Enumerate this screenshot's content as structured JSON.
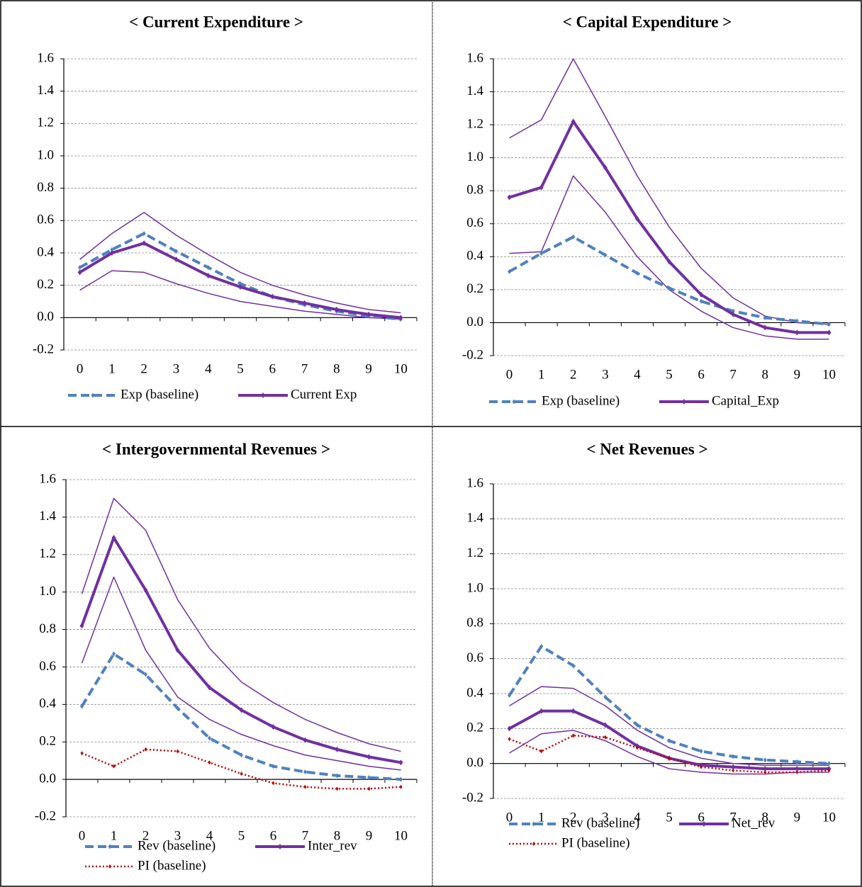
{
  "chart_data": [
    {
      "type": "line",
      "title": "< Current Expenditure >",
      "categories": [
        "0",
        "1",
        "2",
        "3",
        "4",
        "5",
        "6",
        "7",
        "8",
        "9",
        "10"
      ],
      "ylim": [
        -0.2,
        1.6
      ],
      "yticks": [
        {
          "value": -0.2,
          "label": "-0.2"
        },
        {
          "value": 0,
          "label": "0.0"
        },
        {
          "value": 0.2,
          "label": "0.2"
        },
        {
          "value": 0.4,
          "label": "0.4"
        },
        {
          "value": 0.6,
          "label": "0.6"
        },
        {
          "value": 0.8,
          "label": "0.8"
        },
        {
          "value": 1,
          "label": "1.0"
        },
        {
          "value": 1.2,
          "label": "1.2"
        },
        {
          "value": 1.4,
          "label": "1.4"
        },
        {
          "value": 1.6,
          "label": "1.6"
        }
      ],
      "grid": true,
      "series": [
        {
          "color": "#7030a0",
          "style": "thin",
          "values": [
            0.36,
            0.52,
            0.65,
            0.51,
            0.39,
            0.28,
            0.2,
            0.14,
            0.09,
            0.05,
            0.03
          ]
        },
        {
          "color": "#7030a0",
          "style": "thin",
          "values": [
            0.17,
            0.29,
            0.28,
            0.21,
            0.15,
            0.1,
            0.07,
            0.04,
            0.02,
            0.0,
            -0.01
          ]
        },
        {
          "name": "Exp (baseline)",
          "color": "#4f81bd",
          "style": "dashed",
          "values": [
            0.31,
            0.42,
            0.52,
            0.41,
            0.31,
            0.21,
            0.13,
            0.08,
            0.04,
            0.01,
            -0.01
          ]
        },
        {
          "name": "Current  Exp",
          "color": "#7030a0",
          "style": "bold",
          "values": [
            0.28,
            0.4,
            0.46,
            0.36,
            0.26,
            0.19,
            0.13,
            0.09,
            0.05,
            0.02,
            0.0
          ]
        }
      ]
    },
    {
      "type": "line",
      "title": "< Capital Expenditure >",
      "categories": [
        "0",
        "1",
        "2",
        "3",
        "4",
        "5",
        "6",
        "7",
        "8",
        "9",
        "10"
      ],
      "ylim": [
        -0.2,
        1.6
      ],
      "yticks": [
        {
          "value": -0.2,
          "label": "-0.2"
        },
        {
          "value": 0,
          "label": "0.0"
        },
        {
          "value": 0.2,
          "label": "0.2"
        },
        {
          "value": 0.4,
          "label": "0.4"
        },
        {
          "value": 0.6,
          "label": "0.6"
        },
        {
          "value": 0.8,
          "label": "0.8"
        },
        {
          "value": 1,
          "label": "1.0"
        },
        {
          "value": 1.2,
          "label": "1.2"
        },
        {
          "value": 1.4,
          "label": "1.4"
        },
        {
          "value": 1.6,
          "label": "1.6"
        }
      ],
      "grid": true,
      "series": [
        {
          "color": "#7030a0",
          "style": "thin",
          "values": [
            1.12,
            1.23,
            1.6,
            1.25,
            0.89,
            0.58,
            0.33,
            0.15,
            0.04,
            0.0,
            -0.01
          ]
        },
        {
          "color": "#7030a0",
          "style": "thin",
          "values": [
            0.42,
            0.43,
            0.89,
            0.67,
            0.4,
            0.2,
            0.07,
            -0.03,
            -0.08,
            -0.1,
            -0.1
          ]
        },
        {
          "name": "Exp (baseline)",
          "color": "#4f81bd",
          "style": "dashed",
          "values": [
            0.31,
            0.42,
            0.52,
            0.41,
            0.3,
            0.21,
            0.13,
            0.07,
            0.03,
            0.01,
            -0.01
          ]
        },
        {
          "name": "Capital_Exp",
          "color": "#7030a0",
          "style": "bold",
          "values": [
            0.76,
            0.82,
            1.22,
            0.94,
            0.63,
            0.37,
            0.17,
            0.05,
            -0.03,
            -0.06,
            -0.06
          ]
        }
      ]
    },
    {
      "type": "line",
      "title": "< Intergovernmental Revenues >",
      "categories": [
        "0",
        "1",
        "2",
        "3",
        "4",
        "5",
        "6",
        "7",
        "8",
        "9",
        "10"
      ],
      "ylim": [
        -0.2,
        1.6
      ],
      "yticks": [
        {
          "value": -0.2,
          "label": "-0.2"
        },
        {
          "value": 0,
          "label": "0.0"
        },
        {
          "value": 0.2,
          "label": "0.2"
        },
        {
          "value": 0.4,
          "label": "0.4"
        },
        {
          "value": 0.6,
          "label": "0.6"
        },
        {
          "value": 0.8,
          "label": "0.8"
        },
        {
          "value": 1,
          "label": "1.0"
        },
        {
          "value": 1.2,
          "label": "1.2"
        },
        {
          "value": 1.4,
          "label": "1.4"
        },
        {
          "value": 1.6,
          "label": "1.6"
        }
      ],
      "grid": true,
      "series": [
        {
          "color": "#7030a0",
          "style": "thin",
          "values": [
            0.99,
            1.5,
            1.33,
            0.96,
            0.7,
            0.52,
            0.41,
            0.32,
            0.25,
            0.19,
            0.15
          ]
        },
        {
          "color": "#7030a0",
          "style": "thin",
          "values": [
            0.62,
            1.08,
            0.69,
            0.44,
            0.32,
            0.24,
            0.18,
            0.13,
            0.1,
            0.07,
            0.05
          ]
        },
        {
          "name": "Rev (baseline)",
          "color": "#4f81bd",
          "style": "dashed",
          "values": [
            0.39,
            0.67,
            0.56,
            0.38,
            0.22,
            0.13,
            0.07,
            0.04,
            0.02,
            0.01,
            0.0
          ]
        },
        {
          "name": "Inter_rev",
          "color": "#7030a0",
          "style": "bold",
          "values": [
            0.82,
            1.29,
            1.01,
            0.69,
            0.49,
            0.37,
            0.28,
            0.21,
            0.16,
            0.12,
            0.09
          ]
        },
        {
          "name": "PI (baseline)",
          "color": "#c00000",
          "style": "dotted",
          "values": [
            0.14,
            0.07,
            0.16,
            0.15,
            0.09,
            0.03,
            -0.02,
            -0.04,
            -0.05,
            -0.05,
            -0.04
          ]
        }
      ]
    },
    {
      "type": "line",
      "title": "< Net Revenues >",
      "categories": [
        "0",
        "1",
        "2",
        "3",
        "4",
        "5",
        "6",
        "7",
        "8",
        "9",
        "10"
      ],
      "ylim": [
        -0.2,
        1.6
      ],
      "yticks": [
        {
          "value": -0.2,
          "label": "-0.2"
        },
        {
          "value": 0,
          "label": "0.0"
        },
        {
          "value": 0.2,
          "label": "0.2"
        },
        {
          "value": 0.4,
          "label": "0.4"
        },
        {
          "value": 0.6,
          "label": "0.6"
        },
        {
          "value": 0.8,
          "label": "0.8"
        },
        {
          "value": 1,
          "label": "1.0"
        },
        {
          "value": 1.2,
          "label": "1.2"
        },
        {
          "value": 1.4,
          "label": "1.4"
        },
        {
          "value": 1.6,
          "label": "1.6"
        }
      ],
      "grid": true,
      "series": [
        {
          "color": "#7030a0",
          "style": "thin",
          "values": [
            0.33,
            0.44,
            0.43,
            0.33,
            0.19,
            0.09,
            0.03,
            0.0,
            -0.01,
            -0.01,
            -0.01
          ]
        },
        {
          "color": "#7030a0",
          "style": "thin",
          "values": [
            0.06,
            0.17,
            0.19,
            0.13,
            0.04,
            -0.03,
            -0.05,
            -0.06,
            -0.06,
            -0.05,
            -0.05
          ]
        },
        {
          "name": "Rev (baseline)",
          "color": "#4f81bd",
          "style": "dashed",
          "values": [
            0.39,
            0.67,
            0.56,
            0.38,
            0.22,
            0.13,
            0.07,
            0.04,
            0.02,
            0.01,
            0.0
          ]
        },
        {
          "name": "Net_rev",
          "color": "#7030a0",
          "style": "bold",
          "values": [
            0.2,
            0.3,
            0.3,
            0.22,
            0.1,
            0.03,
            -0.01,
            -0.02,
            -0.03,
            -0.03,
            -0.03
          ]
        },
        {
          "name": "PI (baseline)",
          "color": "#c00000",
          "style": "dotted",
          "values": [
            0.14,
            0.07,
            0.16,
            0.15,
            0.09,
            0.03,
            -0.02,
            -0.04,
            -0.05,
            -0.05,
            -0.04
          ]
        }
      ]
    }
  ]
}
